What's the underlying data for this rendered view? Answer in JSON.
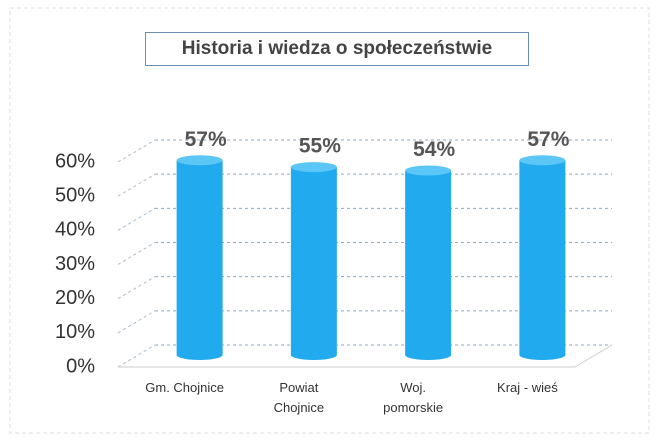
{
  "chart_data": {
    "type": "bar",
    "title": "Historia i wiedza o społeczeństwie",
    "categories": [
      "Gm. Chojnice",
      "Powiat Chojnice",
      "Woj. pomorskie",
      "Kraj - wieś"
    ],
    "values": [
      57,
      55,
      54,
      57
    ],
    "value_labels": [
      "57%",
      "55%",
      "54%",
      "57%"
    ],
    "color": "#22aaee",
    "ylim": [
      0,
      60
    ],
    "yticks": [
      {
        "value": 0,
        "label": "0%"
      },
      {
        "value": 10,
        "label": "10%"
      },
      {
        "value": 20,
        "label": "20%"
      },
      {
        "value": 30,
        "label": "30%"
      },
      {
        "value": 40,
        "label": "40%"
      },
      {
        "value": 50,
        "label": "50%"
      },
      {
        "value": 60,
        "label": "60%"
      }
    ],
    "grid": true
  }
}
